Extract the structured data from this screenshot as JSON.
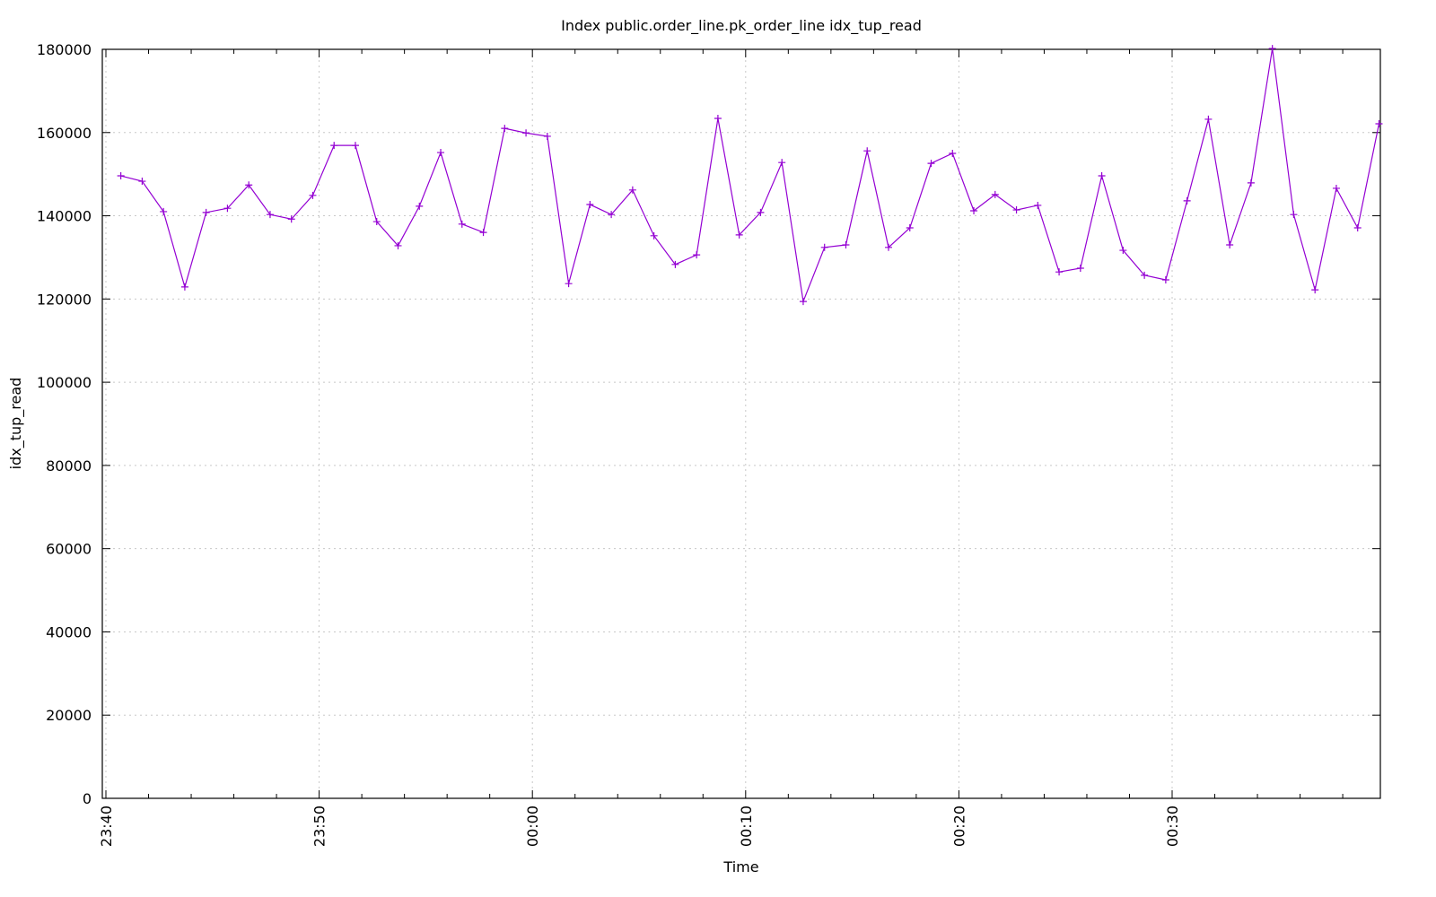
{
  "chart_data": {
    "type": "line",
    "title": "Index public.order_line.pk_order_line idx_tup_read",
    "xlabel": "Time",
    "ylabel": "idx_tup_read",
    "ylim": [
      0,
      180000
    ],
    "yticks": [
      0,
      20000,
      40000,
      60000,
      80000,
      100000,
      120000,
      140000,
      160000,
      180000
    ],
    "xticks": [
      "23:40",
      "23:50",
      "00:00",
      "00:10",
      "00:20",
      "00:30"
    ],
    "grid": true,
    "legend": "none",
    "series": [
      {
        "name": "idx_tup_read",
        "color": "#9400d3",
        "marker": "+",
        "x_minutes_from_2340": [
          0.7,
          1.7,
          2.7,
          3.7,
          4.7,
          5.7,
          6.7,
          7.7,
          8.7,
          9.7,
          10.7,
          11.7,
          12.7,
          13.7,
          14.7,
          15.7,
          16.7,
          17.7,
          18.7,
          19.7,
          20.7,
          21.7,
          22.7,
          23.7,
          24.7,
          25.7,
          26.7,
          27.7,
          28.7,
          29.7,
          30.7,
          31.7,
          32.7,
          33.7,
          34.7,
          35.7,
          36.7,
          37.7,
          38.7,
          39.7,
          40.7,
          41.7,
          42.7,
          43.7,
          44.7,
          45.7,
          46.7,
          47.7,
          48.7,
          49.7,
          50.7,
          51.7,
          52.7,
          53.7,
          54.7,
          55.7,
          56.7,
          57.7,
          58.7,
          59.7
        ],
        "values": [
          149600,
          148300,
          141000,
          122900,
          140800,
          141800,
          147400,
          140300,
          139200,
          144900,
          156900,
          156900,
          138600,
          132800,
          142300,
          155200,
          138000,
          136000,
          161000,
          159900,
          159100,
          123700,
          142700,
          140300,
          146200,
          135200,
          128300,
          130600,
          163400,
          135400,
          140800,
          152800,
          119400,
          132400,
          133000,
          155600,
          132400,
          137100,
          152600,
          155000,
          141200,
          145100,
          141400,
          142500,
          126500,
          127400,
          149600,
          131700,
          125700,
          124600,
          143600,
          163200,
          133000,
          147900,
          180200,
          140300,
          122200,
          146600,
          137100,
          162100
        ]
      }
    ]
  }
}
